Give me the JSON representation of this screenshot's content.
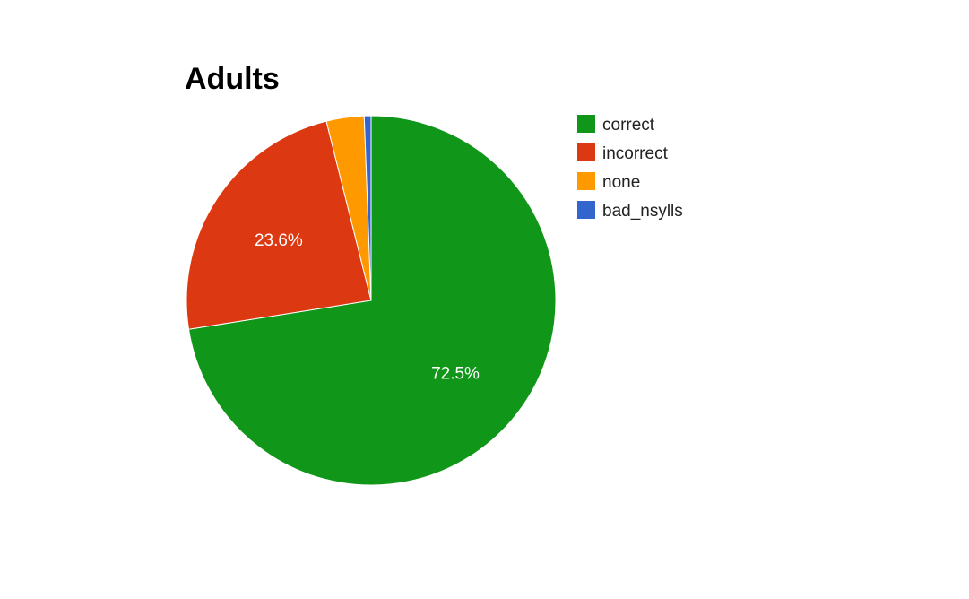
{
  "chart_data": {
    "type": "pie",
    "title": "Adults",
    "categories": [
      "correct",
      "incorrect",
      "none",
      "bad_nsylls"
    ],
    "values": [
      72.5,
      23.6,
      3.3,
      0.6
    ],
    "value_labels": [
      "72.5%",
      "23.6%",
      "",
      ""
    ],
    "colors": [
      "#109618",
      "#dc3912",
      "#ff9900",
      "#3366cc"
    ],
    "legend_position": "right",
    "start_angle": "top",
    "direction": "clockwise"
  }
}
